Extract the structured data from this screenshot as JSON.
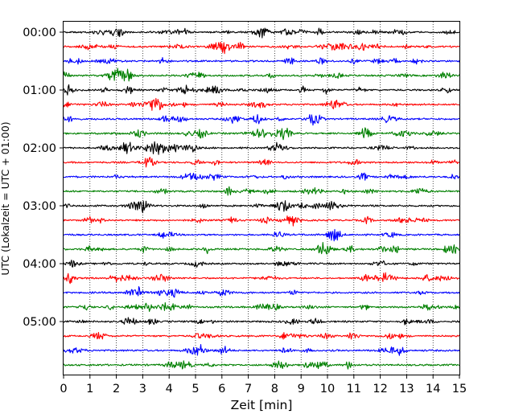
{
  "chart_data": {
    "type": "line",
    "title": "",
    "xlabel": "Zeit  [min]",
    "ylabel": "UTC (Lokalzeit = UTC + 01:00)",
    "xlim": [
      0,
      15
    ],
    "x_ticks": [
      0,
      1,
      2,
      3,
      4,
      5,
      6,
      7,
      8,
      9,
      10,
      11,
      12,
      13,
      14,
      15
    ],
    "x_tick_labels": [
      "0",
      "1",
      "2",
      "3",
      "4",
      "5",
      "6",
      "7",
      "8",
      "9",
      "10",
      "11",
      "12",
      "13",
      "14",
      "15"
    ],
    "y_tick_labels": [
      "00:00",
      "01:00",
      "02:00",
      "03:00",
      "04:00",
      "05:00"
    ],
    "minutes_per_trace": 15,
    "trace_count": 24,
    "trace_colors": [
      "#000000",
      "#ff0000",
      "#0000ff",
      "#008000"
    ],
    "vertical_grid": "dotted",
    "legend": "none"
  }
}
